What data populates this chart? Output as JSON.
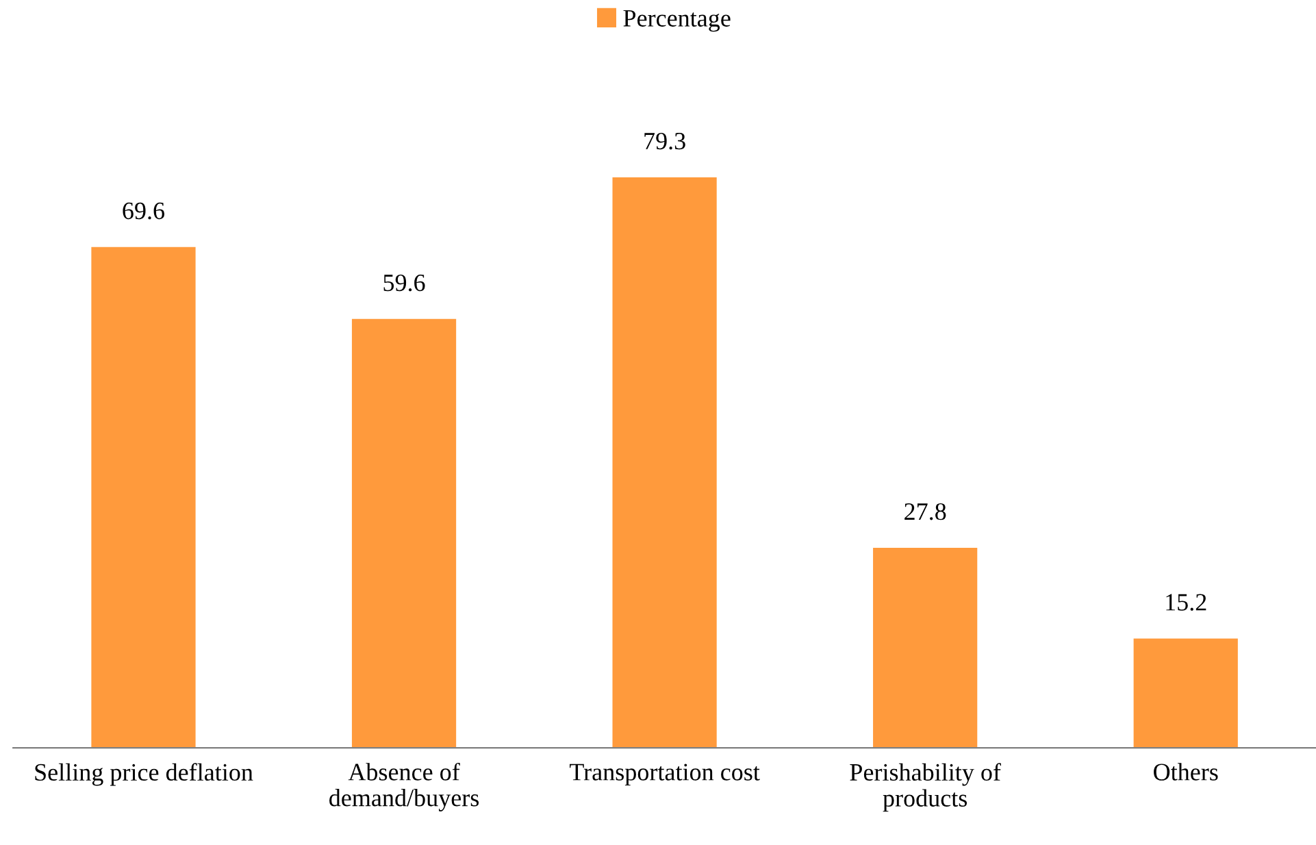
{
  "chart_data": {
    "type": "bar",
    "categories": [
      "Selling price deflation",
      "Absence of\ndemand/buyers",
      "Transportation cost",
      "Perishability of\nproducts",
      "Others"
    ],
    "series": [
      {
        "name": "Percentage",
        "color": "#ff9a3c",
        "values": [
          69.6,
          59.6,
          79.3,
          27.8,
          15.2
        ]
      }
    ],
    "data_labels": true,
    "legend": "top",
    "grid": false
  }
}
